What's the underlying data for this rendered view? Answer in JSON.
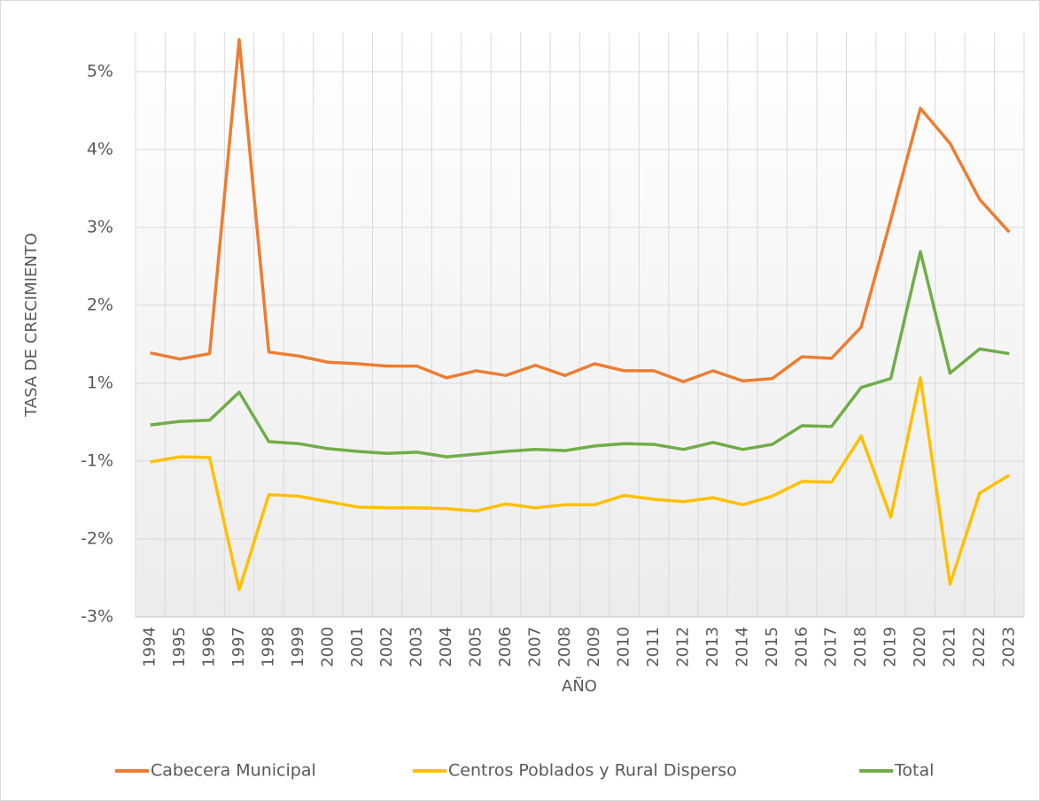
{
  "chart_data": {
    "type": "line",
    "x_label": "AÑO",
    "y_label": "TASA DE CRECIMIENTO",
    "categories": [
      "1994",
      "1995",
      "1996",
      "1997",
      "1998",
      "1999",
      "2000",
      "2001",
      "2002",
      "2003",
      "2004",
      "2005",
      "2006",
      "2007",
      "2008",
      "2009",
      "2010",
      "2011",
      "2012",
      "2013",
      "2014",
      "2015",
      "2016",
      "2017",
      "2018",
      "2019",
      "2020",
      "2021",
      "2022",
      "2023"
    ],
    "series": [
      {
        "name": "Cabecera Municipal",
        "color": "#ed7d31",
        "values": [
          1.39,
          1.31,
          1.38,
          5.41,
          1.4,
          1.35,
          1.27,
          1.25,
          1.22,
          1.22,
          1.07,
          1.16,
          1.1,
          1.23,
          1.1,
          1.25,
          1.16,
          1.16,
          1.02,
          1.16,
          1.03,
          1.06,
          1.34,
          1.32,
          1.72,
          3.1,
          4.53,
          4.08,
          3.36,
          2.94
        ]
      },
      {
        "name": "Centros Poblados y Rural Disperso",
        "color": "#ffc000",
        "values": [
          -1.01,
          -0.89,
          -0.91,
          -2.65,
          -1.43,
          -1.45,
          -1.52,
          -1.59,
          -1.6,
          -1.6,
          -1.61,
          -1.64,
          -1.55,
          -1.6,
          -1.56,
          -1.56,
          -1.44,
          -1.49,
          -1.52,
          -1.47,
          -1.56,
          -1.45,
          -1.26,
          -1.27,
          -0.36,
          -1.72,
          1.07,
          -2.58,
          -1.41,
          -1.18
        ]
      },
      {
        "name": "Total",
        "color": "#70ad47",
        "values": [
          -0.07,
          0.02,
          0.05,
          0.77,
          -0.5,
          -0.55,
          -0.68,
          -0.75,
          -0.8,
          -0.77,
          -0.89,
          -0.82,
          -0.75,
          -0.7,
          -0.73,
          -0.61,
          -0.55,
          -0.57,
          -0.7,
          -0.52,
          -0.7,
          -0.57,
          -0.09,
          -0.11,
          0.89,
          1.06,
          2.69,
          1.13,
          1.44,
          1.38
        ]
      }
    ],
    "ylim": [
      -3,
      5.5
    ],
    "yticks": [
      {
        "value": 5,
        "label": "5%"
      },
      {
        "value": 4,
        "label": "4%"
      },
      {
        "value": 3,
        "label": "3%"
      },
      {
        "value": 2,
        "label": "2%"
      },
      {
        "value": 1,
        "label": "1%"
      },
      {
        "value": -1,
        "label": "-1%"
      },
      {
        "value": -2,
        "label": "-2%"
      },
      {
        "value": -3,
        "label": "-3%"
      }
    ],
    "grid": true,
    "legend": "bottom"
  }
}
